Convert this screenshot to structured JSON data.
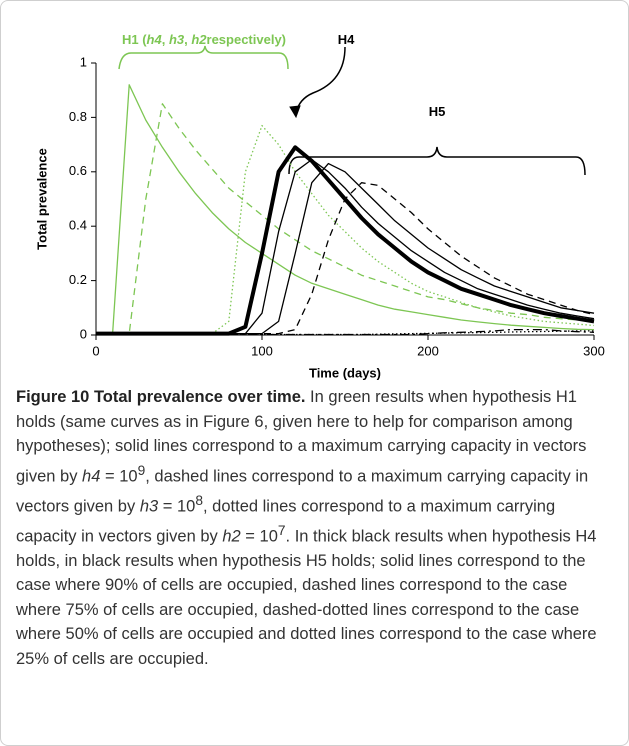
{
  "chart_data": {
    "type": "line",
    "x_label": "Time (days)",
    "y_label": "Total prevalence",
    "x": [
      0,
      10,
      20,
      30,
      40,
      50,
      60,
      70,
      80,
      90,
      100,
      110,
      120,
      130,
      140,
      150,
      160,
      170,
      180,
      190,
      200,
      210,
      220,
      230,
      240,
      250,
      260,
      270,
      280,
      290,
      300
    ],
    "xlim": [
      0,
      300
    ],
    "xticks": [
      0,
      100,
      200,
      300
    ],
    "ylim": [
      0,
      1
    ],
    "yticks": [
      0,
      0.2,
      0.4,
      0.6,
      0.8,
      1
    ],
    "annotations": [
      {
        "parts": [
          {
            "text": "H1 (",
            "style": "bold"
          },
          {
            "text": "h4",
            "style": "bold-italic"
          },
          {
            "text": ", ",
            "style": "bold"
          },
          {
            "text": "h3",
            "style": "bold-italic"
          },
          {
            "text": ", ",
            "style": "bold"
          },
          {
            "text": "h2",
            "style": "bold-italic"
          },
          {
            "text": "respectively)",
            "style": "bold"
          }
        ],
        "color": "#7dc653"
      },
      {
        "parts": [
          {
            "text": "H4",
            "style": "bold"
          }
        ],
        "color": "#000000"
      },
      {
        "parts": [
          {
            "text": "H5",
            "style": "bold"
          }
        ],
        "color": "#000000"
      }
    ],
    "series": [
      {
        "color": "#7dc653",
        "dash": "solid",
        "weight": "thin",
        "values": [
          0.005,
          0.005,
          0.92,
          0.79,
          0.69,
          0.6,
          0.52,
          0.45,
          0.39,
          0.34,
          0.3,
          0.26,
          0.22,
          0.19,
          0.17,
          0.15,
          0.13,
          0.11,
          0.095,
          0.085,
          0.075,
          0.065,
          0.055,
          0.048,
          0.042,
          0.036,
          0.032,
          0.028,
          0.024,
          0.021,
          0.02
        ]
      },
      {
        "color": "#7dc653",
        "dash": "dashed",
        "weight": "thin",
        "values": [
          0.005,
          0.005,
          0.005,
          0.5,
          0.85,
          0.76,
          0.68,
          0.61,
          0.54,
          0.49,
          0.44,
          0.39,
          0.35,
          0.31,
          0.28,
          0.25,
          0.22,
          0.2,
          0.18,
          0.16,
          0.14,
          0.13,
          0.115,
          0.1,
          0.09,
          0.08,
          0.075,
          0.065,
          0.06,
          0.055,
          0.05
        ]
      },
      {
        "color": "#7dc653",
        "dash": "dotted",
        "weight": "thin",
        "values": [
          0.005,
          0.005,
          0.005,
          0.005,
          0.005,
          0.005,
          0.005,
          0.005,
          0.05,
          0.6,
          0.77,
          0.7,
          0.6,
          0.52,
          0.44,
          0.38,
          0.32,
          0.27,
          0.23,
          0.19,
          0.16,
          0.14,
          0.12,
          0.1,
          0.085,
          0.07,
          0.06,
          0.05,
          0.045,
          0.04,
          0.035
        ]
      },
      {
        "color": "#000000",
        "dash": "solid",
        "weight": "thick",
        "values": [
          0.005,
          0.005,
          0.005,
          0.005,
          0.005,
          0.005,
          0.005,
          0.005,
          0.005,
          0.03,
          0.3,
          0.6,
          0.69,
          0.64,
          0.57,
          0.5,
          0.43,
          0.37,
          0.32,
          0.27,
          0.23,
          0.2,
          0.17,
          0.15,
          0.13,
          0.11,
          0.095,
          0.08,
          0.07,
          0.06,
          0.05
        ]
      },
      {
        "color": "#000000",
        "dash": "solid",
        "weight": "thin",
        "values": [
          0.005,
          0.005,
          0.005,
          0.005,
          0.005,
          0.005,
          0.005,
          0.005,
          0.005,
          0.005,
          0.08,
          0.38,
          0.6,
          0.645,
          0.6,
          0.54,
          0.47,
          0.41,
          0.36,
          0.31,
          0.27,
          0.23,
          0.2,
          0.17,
          0.15,
          0.13,
          0.11,
          0.095,
          0.08,
          0.07,
          0.06
        ]
      },
      {
        "color": "#000000",
        "dash": "solid",
        "weight": "thin",
        "values": [
          0.005,
          0.005,
          0.005,
          0.005,
          0.005,
          0.005,
          0.005,
          0.005,
          0.005,
          0.005,
          0.005,
          0.05,
          0.3,
          0.56,
          0.63,
          0.6,
          0.54,
          0.48,
          0.42,
          0.37,
          0.32,
          0.28,
          0.24,
          0.21,
          0.18,
          0.16,
          0.14,
          0.12,
          0.1,
          0.09,
          0.08
        ]
      },
      {
        "color": "#000000",
        "dash": "dashed",
        "weight": "thin",
        "values": [
          0.005,
          0.005,
          0.005,
          0.005,
          0.005,
          0.005,
          0.005,
          0.005,
          0.005,
          0.005,
          0.005,
          0.005,
          0.02,
          0.15,
          0.35,
          0.5,
          0.56,
          0.55,
          0.5,
          0.45,
          0.39,
          0.34,
          0.29,
          0.25,
          0.21,
          0.18,
          0.15,
          0.13,
          0.11,
          0.09,
          0.075
        ]
      },
      {
        "color": "#000000",
        "dash": "dashdot",
        "weight": "thin",
        "values": [
          0.002,
          0.002,
          0.002,
          0.002,
          0.002,
          0.002,
          0.002,
          0.002,
          0.002,
          0.002,
          0.002,
          0.002,
          0.002,
          0.002,
          0.002,
          0.002,
          0.002,
          0.002,
          0.002,
          0.002,
          0.005,
          0.008,
          0.01,
          0.012,
          0.015,
          0.02,
          0.02,
          0.02,
          0.015,
          0.012,
          0.01
        ]
      },
      {
        "color": "#000000",
        "dash": "dotted",
        "weight": "thin",
        "values": [
          0.002,
          0.002,
          0.002,
          0.002,
          0.002,
          0.002,
          0.002,
          0.002,
          0.002,
          0.002,
          0.002,
          0.002,
          0.002,
          0.002,
          0.002,
          0.002,
          0.002,
          0.003,
          0.004,
          0.005,
          0.006,
          0.007,
          0.008,
          0.009,
          0.01,
          0.011,
          0.012,
          0.013,
          0.014,
          0.015,
          0.015
        ]
      }
    ]
  },
  "caption": {
    "runs": [
      {
        "text": "Figure 10 Total prevalence over time.",
        "style": "bold"
      },
      " In green results when hypothesis H1 holds (same curves as in Figure 6, given here to help for comparison among hypotheses); solid lines correspond to a maximum carrying capacity in vectors given by ",
      {
        "text": "h4",
        "style": "italic"
      },
      " = 10",
      {
        "text": "9",
        "style": "sup"
      },
      ", dashed lines correspond to a maximum carrying capacity in vectors given by ",
      {
        "text": "h3",
        "style": "italic"
      },
      " = 10",
      {
        "text": "8",
        "style": "sup"
      },
      ", dotted lines correspond to a maximum carrying capacity in vectors given by ",
      {
        "text": "h2",
        "style": "italic"
      },
      " = 10",
      {
        "text": "7",
        "style": "sup"
      },
      ". In thick black results when hypothesis H4 holds, in black results when hypothesis H5 holds; solid lines correspond to the case where 90% of cells are occupied, dashed lines correspond to the case where 75% of cells are occupied, dashed-dotted lines correspond to the case where 50% of cells are occupied and dotted lines correspond to the case where 25% of cells are occupied."
    ]
  }
}
